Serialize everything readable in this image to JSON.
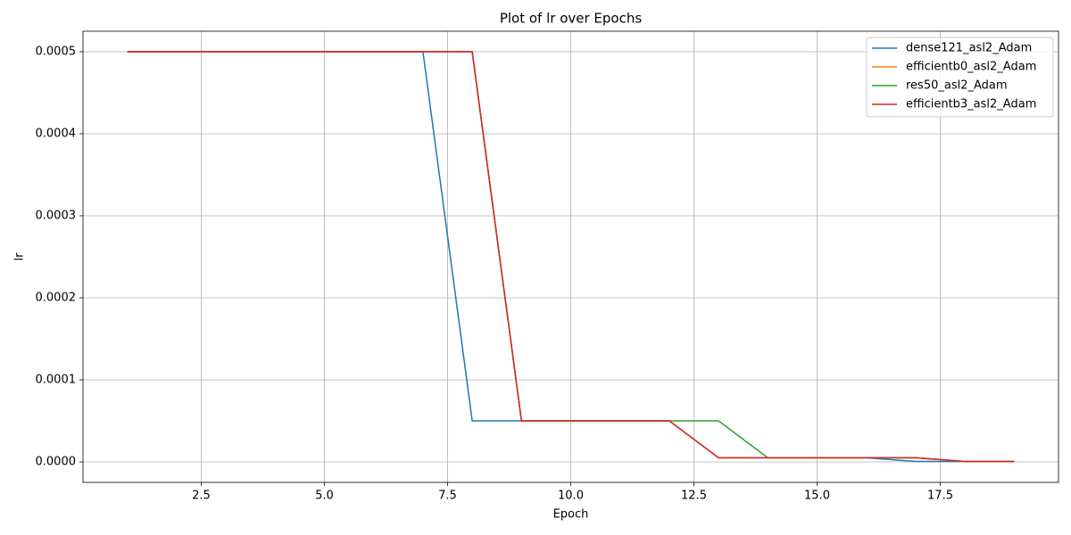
{
  "chart_data": {
    "type": "line",
    "title": "Plot of lr over Epochs",
    "xlabel": "Epoch",
    "ylabel": "lr",
    "x": [
      1,
      2,
      3,
      4,
      5,
      6,
      7,
      8,
      9,
      10,
      11,
      12,
      13,
      14,
      15,
      16,
      17,
      18,
      19
    ],
    "series": [
      {
        "name": "dense121_asl2_Adam",
        "color": "#1f77b4",
        "values": [
          0.0005,
          0.0005,
          0.0005,
          0.0005,
          0.0005,
          0.0005,
          0.0005,
          5e-05,
          5e-05,
          5e-05,
          5e-05,
          5e-05,
          5e-06,
          5e-06,
          5e-06,
          5e-06,
          5e-07,
          5e-07,
          5e-07
        ]
      },
      {
        "name": "efficientb0_asl2_Adam",
        "color": "#ff7f0e",
        "values": [
          0.0005,
          0.0005,
          0.0005,
          0.0005,
          0.0005,
          0.0005,
          0.0005,
          0.0005,
          5e-05,
          5e-05,
          5e-05,
          5e-05,
          5e-06,
          5e-06,
          5e-06,
          5e-06,
          5e-06,
          5e-07,
          5e-07
        ]
      },
      {
        "name": "res50_asl2_Adam",
        "color": "#2ca02c",
        "values": [
          0.0005,
          0.0005,
          0.0005,
          0.0005,
          0.0005,
          0.0005,
          0.0005,
          0.0005,
          5e-05,
          5e-05,
          5e-05,
          5e-05,
          5e-05,
          5e-06,
          5e-06,
          5e-06,
          5e-06,
          5e-07,
          5e-07
        ]
      },
      {
        "name": "efficientb3_asl2_Adam",
        "color": "#d62728",
        "values": [
          0.0005,
          0.0005,
          0.0005,
          0.0005,
          0.0005,
          0.0005,
          0.0005,
          0.0005,
          5e-05,
          5e-05,
          5e-05,
          5e-05,
          5e-06,
          5e-06,
          5e-06,
          5e-06,
          5e-06,
          5e-07,
          5e-07
        ]
      }
    ],
    "xlim": [
      0.1,
      19.9
    ],
    "xticks": [
      2.5,
      {
        "value": 5,
        "label": "5.0"
      },
      7.5,
      {
        "value": 10,
        "label": "10.0"
      },
      12.5,
      {
        "value": 15,
        "label": "15.0"
      },
      17.5
    ],
    "ylim": [
      -2.5e-05,
      0.000525
    ],
    "yticks": [
      {
        "value": 0,
        "label": "0.0000"
      },
      {
        "value": 0.0001,
        "label": "0.0001"
      },
      {
        "value": 0.0002,
        "label": "0.0002"
      },
      {
        "value": 0.0003,
        "label": "0.0003"
      },
      {
        "value": 0.0004,
        "label": "0.0004"
      },
      {
        "value": 0.0005,
        "label": "0.0005"
      }
    ],
    "grid": true,
    "legend": "upper right"
  }
}
